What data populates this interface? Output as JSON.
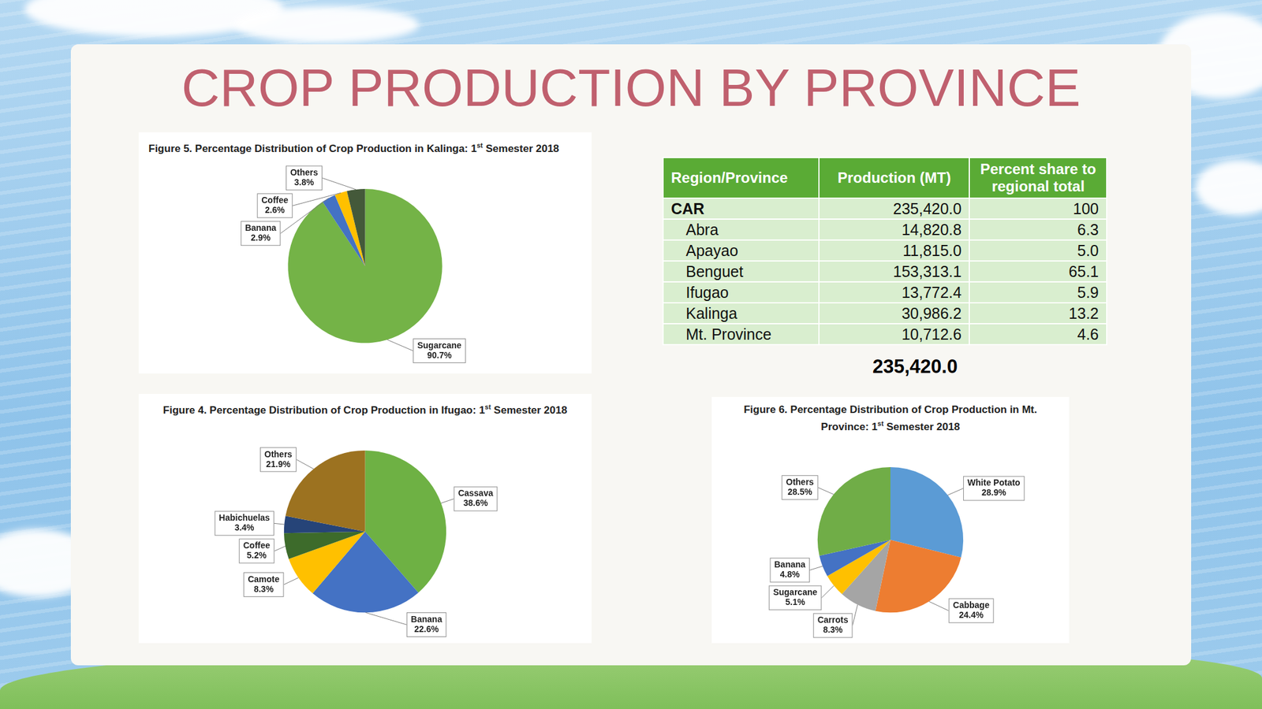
{
  "title": "CROP PRODUCTION BY PROVINCE",
  "table": {
    "columns": [
      "Region/Province",
      "Production (MT)",
      "Percent share to regional total"
    ],
    "rows": [
      [
        "CAR",
        "235,420.0",
        "100"
      ],
      [
        "Abra",
        "14,820.8",
        "6.3"
      ],
      [
        "Apayao",
        "11,815.0",
        "5.0"
      ],
      [
        "Benguet",
        "153,313.1",
        "65.1"
      ],
      [
        "Ifugao",
        "13,772.4",
        "5.9"
      ],
      [
        "Kalinga",
        "30,986.2",
        "13.2"
      ],
      [
        "Mt. Province",
        "10,712.6",
        "4.6"
      ]
    ]
  },
  "total": "235,420.0",
  "chart_data": [
    {
      "type": "pie",
      "title": "Figure 5. Percentage Distribution of Crop Production in Kalinga: 1st Semester 2018",
      "categories": [
        "Sugarcane",
        "Banana",
        "Coffee",
        "Others"
      ],
      "values": [
        90.7,
        2.9,
        2.6,
        3.8
      ],
      "value_labels": [
        "90.7%",
        "2.9%",
        "2.6%",
        "3.8%"
      ],
      "colors": [
        "#74b347",
        "#4472c4",
        "#ffc000",
        "#44593a"
      ],
      "data_labels": true
    },
    {
      "type": "pie",
      "title": "Figure 4. Percentage Distribution of Crop Production in Ifugao: 1st Semester 2018",
      "categories": [
        "Cassava",
        "Banana",
        "Camote",
        "Coffee",
        "Habichuelas",
        "Others"
      ],
      "values": [
        38.6,
        22.6,
        8.3,
        5.2,
        3.4,
        21.9
      ],
      "value_labels": [
        "38.6%",
        "22.6%",
        "8.3%",
        "5.2%",
        "3.4%",
        "21.9%"
      ],
      "colors": [
        "#6eb144",
        "#4472c4",
        "#ffc000",
        "#3d6b2b",
        "#264478",
        "#9c7220"
      ],
      "data_labels": true
    },
    {
      "type": "pie",
      "title": "Figure 6. Percentage Distribution of Crop Production in Mt. Province: 1st Semester 2018",
      "categories": [
        "White Potato",
        "Cabbage",
        "Carrots",
        "Sugarcane",
        "Banana",
        "Others"
      ],
      "values": [
        28.9,
        24.4,
        8.3,
        5.1,
        4.8,
        28.5
      ],
      "value_labels": [
        "28.9%",
        "24.4%",
        "8.3%",
        "5.1%",
        "4.8%",
        "28.5%"
      ],
      "colors": [
        "#5b9bd5",
        "#ed7d31",
        "#a5a5a5",
        "#ffc000",
        "#4472c4",
        "#70ad47"
      ],
      "data_labels": true
    }
  ]
}
